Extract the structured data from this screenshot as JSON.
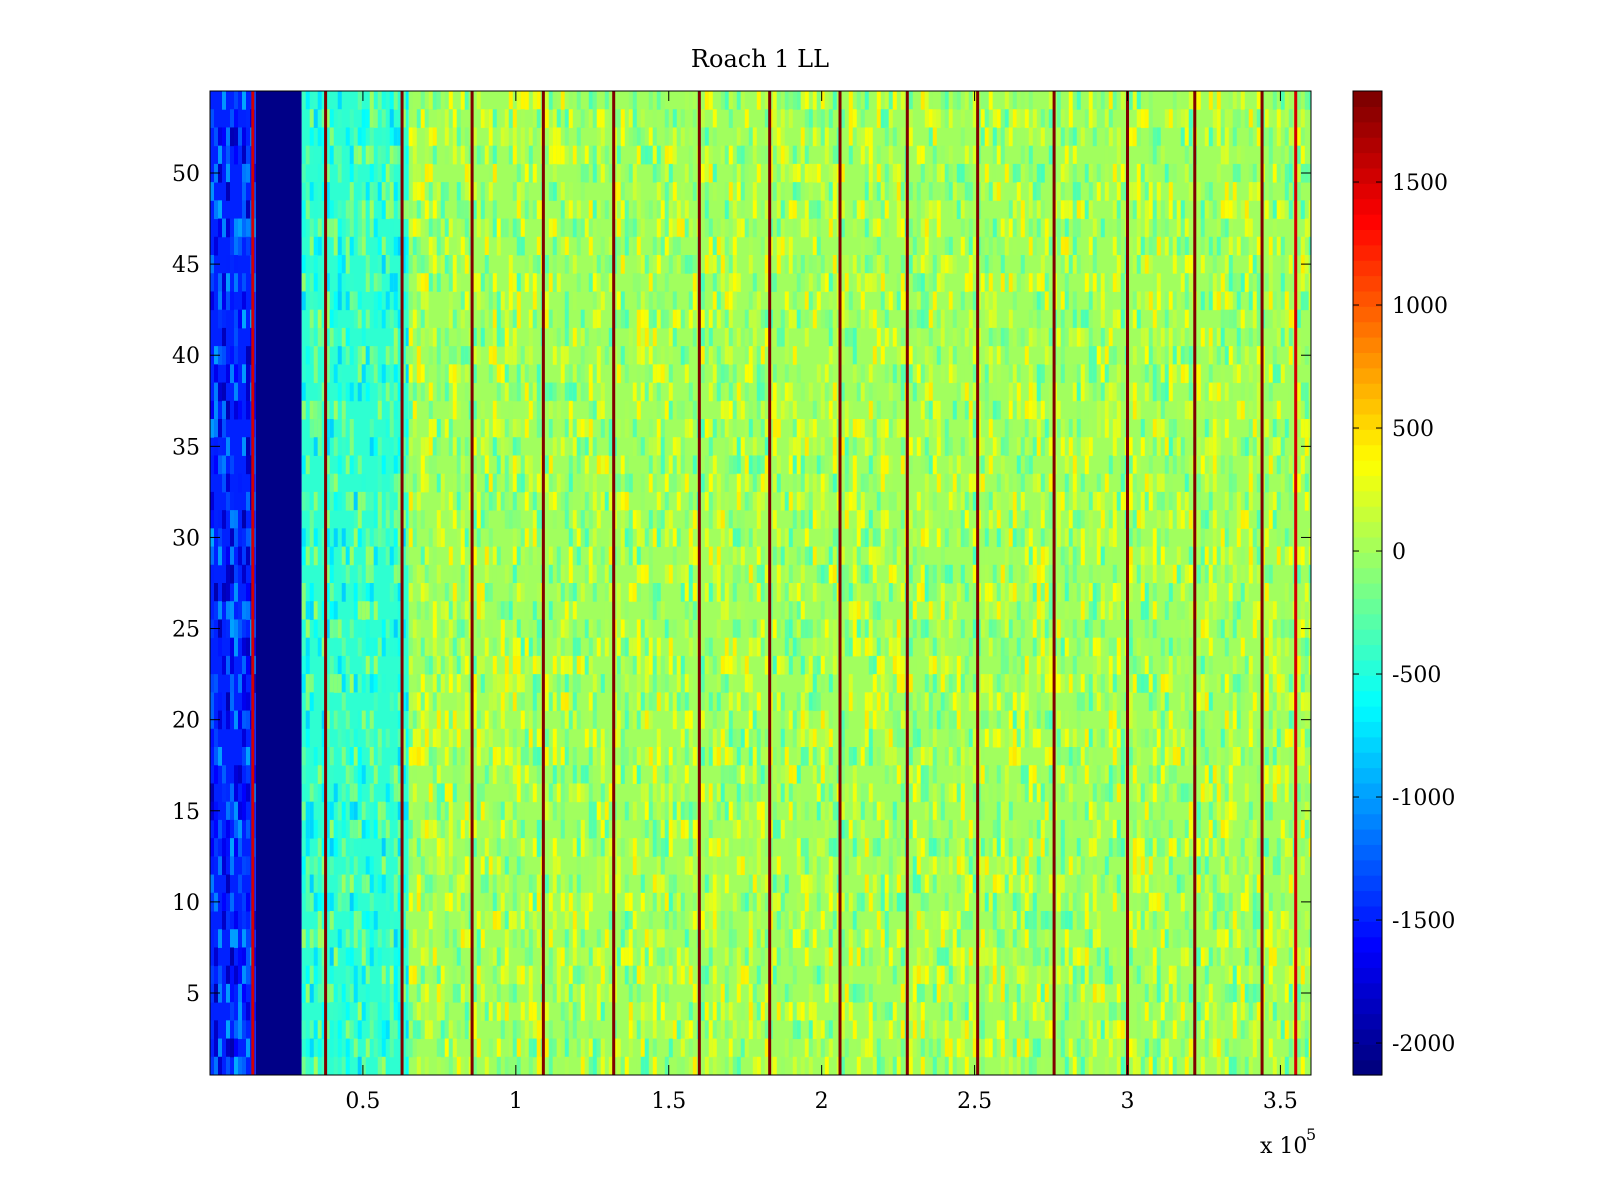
{
  "chart_data": {
    "type": "heatmap",
    "title": "Roach 1 LL",
    "xlabel": "",
    "ylabel": "",
    "x_multiplier_label": {
      "base": "x 10",
      "exponent": "5"
    },
    "xlim": [
      0,
      3.6
    ],
    "ylim": [
      0.5,
      54.5
    ],
    "rows": 54,
    "x_ticks": [
      {
        "value": 0.5,
        "label": "0.5"
      },
      {
        "value": 1,
        "label": "1"
      },
      {
        "value": 1.5,
        "label": "1.5"
      },
      {
        "value": 2,
        "label": "2"
      },
      {
        "value": 2.5,
        "label": "2.5"
      },
      {
        "value": 3,
        "label": "3"
      },
      {
        "value": 3.5,
        "label": "3.5"
      }
    ],
    "y_ticks": [
      {
        "value": 5,
        "label": "5"
      },
      {
        "value": 10,
        "label": "10"
      },
      {
        "value": 15,
        "label": "15"
      },
      {
        "value": 20,
        "label": "20"
      },
      {
        "value": 25,
        "label": "25"
      },
      {
        "value": 30,
        "label": "30"
      },
      {
        "value": 35,
        "label": "35"
      },
      {
        "value": 40,
        "label": "40"
      },
      {
        "value": 45,
        "label": "45"
      },
      {
        "value": 50,
        "label": "50"
      }
    ],
    "colorbar": {
      "colormap": "jet",
      "clim": [
        -2130,
        1870
      ],
      "ticks": [
        {
          "value": 1500,
          "label": "1500"
        },
        {
          "value": 1000,
          "label": "1000"
        },
        {
          "value": 500,
          "label": "500"
        },
        {
          "value": 0,
          "label": "0"
        },
        {
          "value": -500,
          "label": "-500"
        },
        {
          "value": -1000,
          "label": "-1000"
        },
        {
          "value": -1500,
          "label": "-1500"
        },
        {
          "value": -2000,
          "label": "-2000"
        }
      ]
    },
    "regions": [
      {
        "x_start": 0.0,
        "x_end": 0.15,
        "value": -1500,
        "note_color": "#1a5cff"
      },
      {
        "x_start": 0.15,
        "x_end": 0.3,
        "value": -2100,
        "note_color": "#00008f"
      },
      {
        "x_start": 0.3,
        "x_end": 0.65,
        "value": -450,
        "note_color": "#40e0d0"
      },
      {
        "x_start": 0.65,
        "x_end": 3.6,
        "value": 0,
        "note_color": "#9afa6e"
      }
    ],
    "vertical_lines": [
      {
        "x": 0.14,
        "value": 1700,
        "color": "#d40000"
      },
      {
        "x": 0.378,
        "value": 1870,
        "color": "#800000"
      },
      {
        "x": 0.628,
        "value": 1870,
        "color": "#800000"
      },
      {
        "x": 0.857,
        "value": 1870,
        "color": "#800000"
      },
      {
        "x": 1.09,
        "value": 1870,
        "color": "#800000"
      },
      {
        "x": 1.32,
        "value": 1870,
        "color": "#800000"
      },
      {
        "x": 1.6,
        "value": 1870,
        "color": "#800000"
      },
      {
        "x": 1.83,
        "value": 1870,
        "color": "#800000"
      },
      {
        "x": 2.06,
        "value": 1870,
        "color": "#800000"
      },
      {
        "x": 2.28,
        "value": 1870,
        "color": "#800000"
      },
      {
        "x": 2.51,
        "value": 1870,
        "color": "#800000"
      },
      {
        "x": 2.76,
        "value": 1870,
        "color": "#800000"
      },
      {
        "x": 3.0,
        "value": 1870,
        "color": "#800000"
      },
      {
        "x": 3.22,
        "value": 1870,
        "color": "#800000"
      },
      {
        "x": 3.44,
        "value": 1870,
        "color": "#800000"
      },
      {
        "x": 3.55,
        "value": 1700,
        "color": "#d40000"
      }
    ],
    "grid": false
  }
}
